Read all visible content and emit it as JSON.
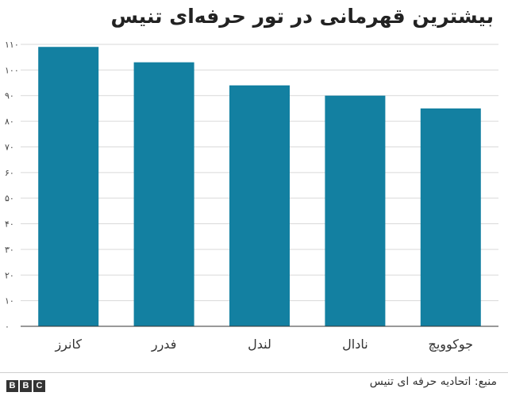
{
  "chart_data": {
    "type": "bar",
    "title": "بیشترین قهرمانی در تور حرفه‌ای تنیس",
    "categories": [
      "کانرز",
      "فدرر",
      "لندل",
      "نادال",
      "جوکوویچ"
    ],
    "values": [
      109,
      103,
      94,
      90,
      85
    ],
    "ylim": [
      0,
      110
    ],
    "yticks": [
      0,
      10,
      20,
      30,
      40,
      50,
      60,
      70,
      80,
      90,
      100,
      110
    ],
    "ytick_labels": [
      "۰",
      "۱۰",
      "۲۰",
      "۳۰",
      "۴۰",
      "۵۰",
      "۶۰",
      "۷۰",
      "۸۰",
      "۹۰",
      "۱۰۰",
      "۱۱۰"
    ],
    "grid": true,
    "bar_color": "#1380a1",
    "grid_color": "#d9d9d9"
  },
  "footer": {
    "source": "منبع: اتحادیه حرفه ای تنیس",
    "logo": [
      "B",
      "B",
      "C"
    ]
  }
}
